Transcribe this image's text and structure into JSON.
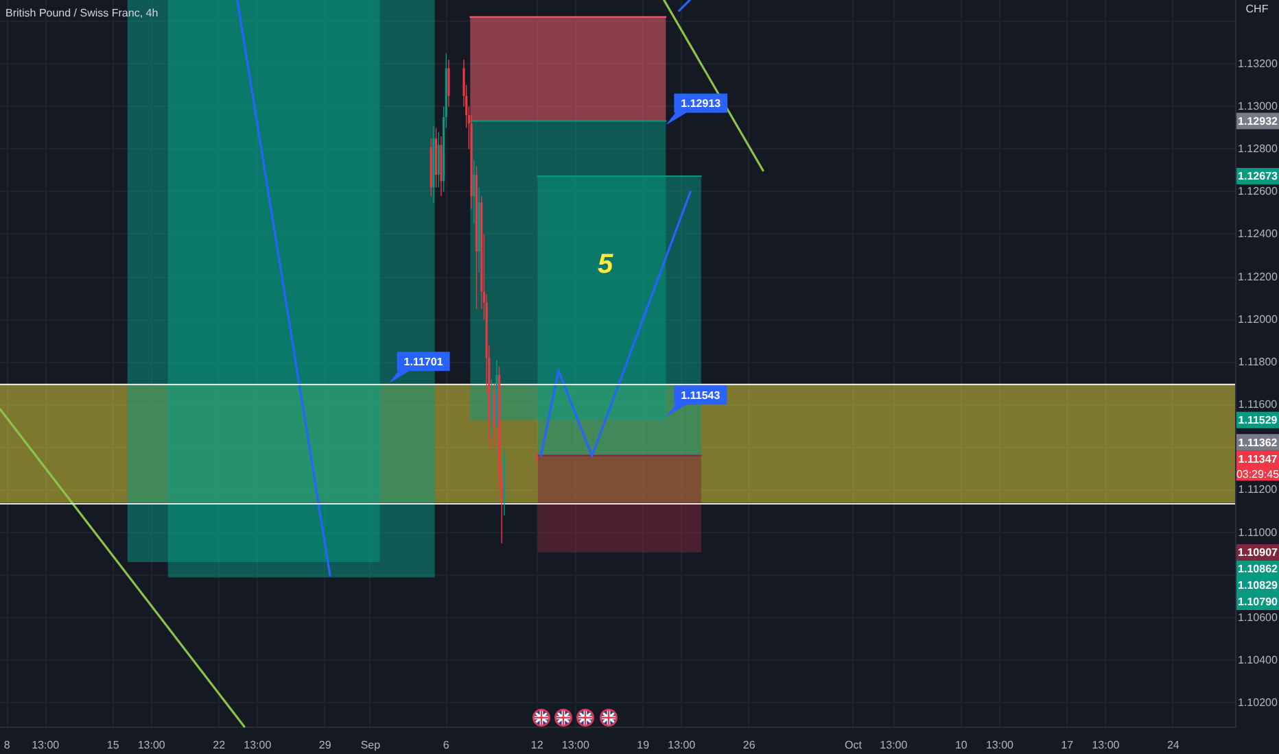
{
  "chart_data": {
    "type": "candlestick",
    "title": "British Pound / Swiss Franc, 4h",
    "ylabel": "CHF",
    "x": [
      "--09-05T00:00",
      "--09-05T04:00",
      "--09-05T08:00",
      "--09-05T12:00",
      "--09-05T16:00",
      "--09-05T20:00",
      "--09-06T00:00",
      "--09-06T04:00",
      "--09-07T04:00",
      "--09-07T08:00",
      "--09-07T12:00",
      "--09-07T16:00",
      "--09-07T20:00",
      "--09-08T00:00",
      "--09-08T04:00",
      "--09-08T08:00",
      "--09-08T12:00",
      "--09-08T16:00",
      "--09-08T20:00",
      "--09-09T00:00",
      "--09-09T04:00",
      "--09-09T08:00",
      "--09-09T12:00",
      "--09-09T16:00",
      "--09-09T20:00",
      "--09-12T00:00"
    ],
    "ohlc": [
      [
        1.1281,
        1.1285,
        1.1258,
        1.1262
      ],
      [
        1.1262,
        1.1291,
        1.1255,
        1.1285
      ],
      [
        1.1285,
        1.129,
        1.1262,
        1.1268
      ],
      [
        1.1268,
        1.1288,
        1.1262,
        1.1282
      ],
      [
        1.1282,
        1.1286,
        1.1258,
        1.1265
      ],
      [
        1.1265,
        1.13,
        1.126,
        1.1295
      ],
      [
        1.1295,
        1.1325,
        1.129,
        1.1318
      ],
      [
        1.1318,
        1.1322,
        1.13,
        1.1305
      ],
      [
        1.1318,
        1.1322,
        1.13,
        1.1305
      ],
      [
        1.1305,
        1.131,
        1.129,
        1.1296
      ],
      [
        1.1296,
        1.13,
        1.128,
        1.1292
      ],
      [
        1.1292,
        1.1296,
        1.1252,
        1.1258
      ],
      [
        1.1258,
        1.1275,
        1.1245,
        1.1268
      ],
      [
        1.1268,
        1.1272,
        1.1205,
        1.1232
      ],
      [
        1.1232,
        1.1262,
        1.1222,
        1.1255
      ],
      [
        1.1255,
        1.1258,
        1.1205,
        1.1213
      ],
      [
        1.1213,
        1.124,
        1.12,
        1.1208
      ],
      [
        1.1208,
        1.1212,
        1.1166,
        1.1182
      ],
      [
        1.1182,
        1.1188,
        1.114,
        1.1153
      ],
      [
        1.1153,
        1.1172,
        1.1145,
        1.1165
      ],
      [
        1.1165,
        1.117,
        1.114,
        1.115
      ],
      [
        1.115,
        1.1181,
        1.1149,
        1.1174
      ],
      [
        1.1174,
        1.1178,
        1.112,
        1.1127
      ],
      [
        1.1127,
        1.1132,
        1.1095,
        1.1114
      ],
      [
        1.1114,
        1.114,
        1.1108,
        1.1136
      ],
      [
        1.11362,
        1.1138,
        1.1133,
        1.11347
      ]
    ],
    "colors": [
      "#f23645",
      "#089981",
      "#f23645",
      "#089981",
      "#f23645",
      "#089981",
      "#089981",
      "#f23645",
      "#f23645",
      "#f23645",
      "#f23645",
      "#f23645",
      "#089981",
      "#f23645",
      "#089981",
      "#f23645",
      "#f23645",
      "#f23645",
      "#f23645",
      "#089981",
      "#f23645",
      "#089981",
      "#f23645",
      "#f23645",
      "#089981",
      "#f23645"
    ],
    "series": [
      {
        "type": "line",
        "x": [
          "--08-15T23:00",
          "--09-01T15:00"
        ],
        "values": [
          null,
          null
        ],
        "lower": [
          1.10862,
          1.10862
        ],
        "upper": [
          1.135,
          1.135
        ],
        "color": "#089981"
      },
      {
        "type": "line",
        "x": [
          "--08-18T15:00",
          "--09-05T06:00"
        ],
        "values": [
          null,
          null
        ],
        "lower": [
          1.1079,
          1.1079
        ],
        "upper": [
          1.135,
          1.135
        ],
        "color": "#089981"
      },
      {
        "type": "line",
        "x": [
          "--09-07T14:00",
          "--09-20T12:00"
        ],
        "values": [
          1.1342,
          1.1342
        ],
        "lower": [
          1.12932,
          1.12932
        ],
        "upper": [
          1.1342,
          1.1342
        ],
        "color": "#ff6470"
      },
      {
        "type": "line",
        "x": [
          "--09-07T14:00",
          "--09-20T12:00"
        ],
        "values": [
          1.12932,
          1.12932
        ],
        "lower": [
          1.11529,
          1.11529
        ],
        "upper": [
          1.12932,
          1.12932
        ],
        "color": "#089981"
      },
      {
        "type": "line",
        "x": [
          "--09-12T01:00",
          "--09-22T20:00"
        ],
        "values": [
          1.12673,
          1.12673
        ],
        "lower": [
          1.11362,
          1.11362
        ],
        "upper": [
          1.12673,
          1.12673
        ],
        "color": "#089981"
      },
      {
        "type": "line",
        "x": [
          "--09-12T01:00",
          "--09-22T20:00"
        ],
        "values": [
          1.11362,
          1.11362
        ],
        "lower": [
          1.10907,
          1.10907
        ],
        "upper": [
          1.11362,
          1.11362
        ],
        "color": "#7f273c"
      },
      {
        "type": "line",
        "x": [
          "--08-07T13:00",
          "--08-23T16:00"
        ],
        "values": [
          1.1158,
          1.1009
        ],
        "color": "#8bc34a"
      },
      {
        "type": "line",
        "x": [
          "--09-20T09:00",
          "--09-26T22:00"
        ],
        "values": [
          1.135,
          1.127
        ],
        "color": "#8bc34a"
      },
      {
        "type": "line",
        "x": [
          "--08-23T05:00",
          "--08-29T08:00"
        ],
        "values": [
          1.135,
          1.108
        ],
        "color": "#2962ff"
      },
      {
        "type": "line",
        "x": [
          "--09-12T06:00",
          "--09-13T10:00",
          "--09-15T15:00",
          "--09-22T03:00"
        ],
        "values": [
          1.1136,
          1.1176,
          1.1136,
          1.126
        ],
        "color": "#2962ff"
      },
      {
        "type": "line",
        "x": [
          "--09-21T09:00",
          "--09-22T02:00"
        ],
        "values": [
          1.1345,
          1.135
        ],
        "color": "#2962ff"
      }
    ],
    "bands": [
      {
        "axis": "y",
        "from": 1.1114,
        "to": 1.117,
        "color": "#ffeb3b"
      }
    ],
    "ref_lines": [
      {
        "axis": "y",
        "value": 1.1114,
        "color": "#e6e6e6"
      },
      {
        "axis": "y",
        "value": 1.117,
        "color": "#e6e6e6"
      }
    ],
    "annotations": [
      {
        "text": "1.11701",
        "x": "--09-02T05:00",
        "y": 1.11701
      },
      {
        "text": "1.12913",
        "x": "--09-20T12:00",
        "y": 1.12913
      },
      {
        "text": "1.11543",
        "x": "--09-20T12:00",
        "y": 1.11543
      },
      "5",
      "1.12932",
      "1.12673",
      "1.11529",
      "1.11362",
      "1.11347\n03:29:45",
      "1.10907",
      "1.10862",
      "1.10829",
      "1.10790"
    ],
    "xlim": [
      "--08-07T13:00",
      "--10-28T02:00"
    ],
    "xticks": [
      {
        "value": "--08-08",
        "label": "8"
      },
      {
        "value": "--08-10T13:00",
        "label": "13:00"
      },
      {
        "value": "--08-15",
        "label": "15"
      },
      {
        "value": "--08-17T13:00",
        "label": "13:00"
      },
      {
        "value": "--08-22",
        "label": "22"
      },
      {
        "value": "--08-24T13:00",
        "label": "13:00"
      },
      {
        "value": "--08-29",
        "label": "29"
      },
      {
        "value": "--09-01",
        "label": "Sep"
      },
      {
        "value": "--09-06",
        "label": "6"
      },
      {
        "value": "--09-12",
        "label": "12"
      },
      {
        "value": "--09-14T13:00",
        "label": "13:00"
      },
      {
        "value": "--09-19",
        "label": "19"
      },
      {
        "value": "--09-21T13:00",
        "label": "13:00"
      },
      {
        "value": "--09-26",
        "label": "26"
      },
      {
        "value": "--10-02T21:00",
        "label": "Oct"
      },
      {
        "value": "--10-05T13:00",
        "label": "13:00"
      },
      {
        "value": "--10-10",
        "label": "10"
      },
      {
        "value": "--10-12T13:00",
        "label": "13:00"
      },
      {
        "value": "--10-17",
        "label": "17"
      },
      {
        "value": "--10-19T13:00",
        "label": "13:00"
      },
      {
        "value": "--10-24",
        "label": "24"
      }
    ],
    "ylim": [
      1.1009,
      1.135
    ],
    "yticks": [
      {
        "value": 1.102,
        "label": "1.10200"
      },
      {
        "value": 1.104,
        "label": "1.10400"
      },
      {
        "value": 1.106,
        "label": "1.10600"
      },
      {
        "value": 1.108,
        "label": null
      },
      {
        "value": 1.11,
        "label": "1.11000"
      },
      {
        "value": 1.112,
        "label": "1.11200"
      },
      {
        "value": 1.114,
        "label": null
      },
      {
        "value": 1.116,
        "label": "1.11600"
      },
      {
        "value": 1.118,
        "label": "1.11800"
      },
      {
        "value": 1.12,
        "label": "1.12000"
      },
      {
        "value": 1.122,
        "label": "1.12200"
      },
      {
        "value": 1.124,
        "label": "1.12400"
      },
      {
        "value": 1.126,
        "label": "1.12600"
      },
      {
        "value": 1.128,
        "label": "1.12800"
      },
      {
        "value": 1.13,
        "label": "1.13000"
      },
      {
        "value": 1.132,
        "label": "1.13200"
      },
      {
        "value": 1.134,
        "label": null
      }
    ],
    "grid": true
  }
}
